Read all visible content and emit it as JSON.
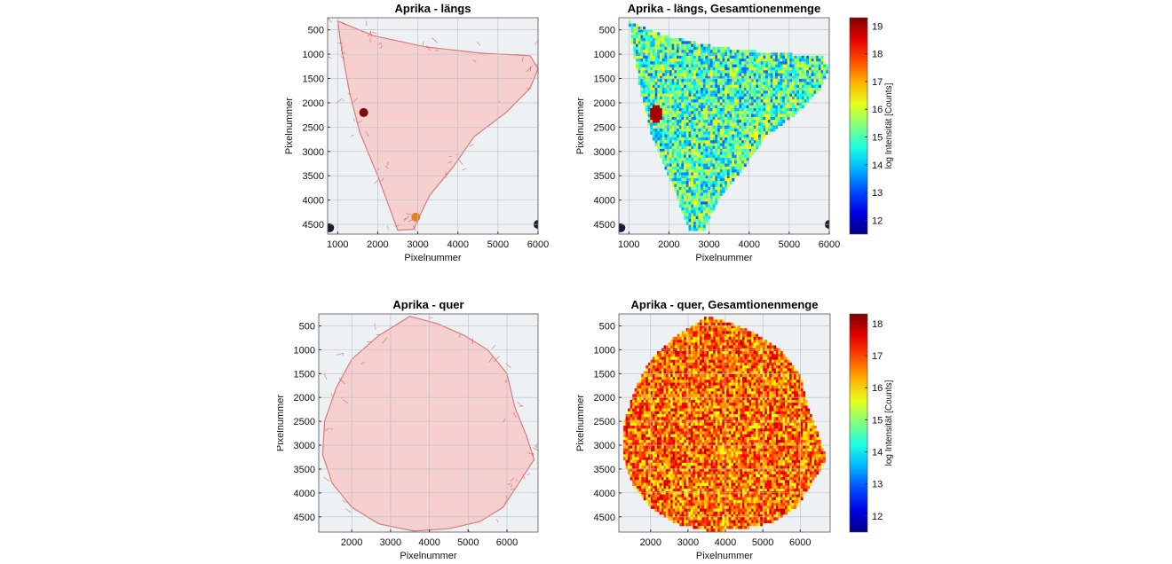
{
  "chart_data": [
    {
      "type": "heatmap",
      "title": "Aprika - längs",
      "xlabel": "Pixelnummer",
      "ylabel": "Pixelnummer",
      "xlim": [
        750,
        6000
      ],
      "ylim": [
        250,
        4700
      ],
      "xticks": [
        1000,
        2000,
        3000,
        4000,
        5000,
        6000
      ],
      "yticks": [
        500,
        1000,
        1500,
        2000,
        2500,
        3000,
        3500,
        4000,
        4500
      ],
      "grid": true,
      "render": "photo",
      "colormap": "reds",
      "outline": [
        [
          1000,
          320
        ],
        [
          1900,
          620
        ],
        [
          3200,
          850
        ],
        [
          4600,
          980
        ],
        [
          5800,
          1030
        ],
        [
          6000,
          1300
        ],
        [
          5800,
          1700
        ],
        [
          5200,
          2200
        ],
        [
          4400,
          2700
        ],
        [
          3900,
          3300
        ],
        [
          3300,
          3900
        ],
        [
          3000,
          4400
        ],
        [
          2900,
          4600
        ],
        [
          2500,
          4620
        ],
        [
          2000,
          3500
        ],
        [
          1550,
          2600
        ],
        [
          1300,
          1800
        ],
        [
          1100,
          900
        ]
      ],
      "spots": [
        {
          "x": 1650,
          "y": 2200,
          "color": "#7a0c0c"
        },
        {
          "x": 2950,
          "y": 4350,
          "color": "#e08020"
        },
        {
          "x": 800,
          "y": 4570,
          "color": "#1a1a2e"
        },
        {
          "x": 6000,
          "y": 4500,
          "color": "#1a1a2e"
        }
      ]
    },
    {
      "type": "heatmap",
      "title": "Aprika - längs, Gesamtionenmenge",
      "xlabel": "Pixelnummer",
      "ylabel": "Pixelnummer",
      "xlim": [
        750,
        6000
      ],
      "ylim": [
        250,
        4700
      ],
      "xticks": [
        1000,
        2000,
        3000,
        4000,
        5000,
        6000
      ],
      "yticks": [
        500,
        1000,
        1500,
        2000,
        2500,
        3000,
        3500,
        4000,
        4500
      ],
      "grid": true,
      "render": "intensity",
      "colormap": "jet",
      "colorbar": {
        "label": "log Intensität [Counts]",
        "range": [
          11.5,
          19.3
        ],
        "ticks": [
          12,
          13,
          14,
          15,
          16,
          17,
          18,
          19
        ]
      },
      "outline": [
        [
          1000,
          320
        ],
        [
          1900,
          620
        ],
        [
          3200,
          850
        ],
        [
          4600,
          980
        ],
        [
          5800,
          1030
        ],
        [
          6000,
          1300
        ],
        [
          5800,
          1700
        ],
        [
          5200,
          2200
        ],
        [
          4400,
          2700
        ],
        [
          3900,
          3300
        ],
        [
          3300,
          3900
        ],
        [
          3000,
          4400
        ],
        [
          2900,
          4600
        ],
        [
          2500,
          4620
        ],
        [
          2000,
          3500
        ],
        [
          1550,
          2600
        ],
        [
          1300,
          1800
        ],
        [
          1100,
          900
        ]
      ],
      "value_range": [
        13.2,
        16.6
      ],
      "hotspot": {
        "x": 1650,
        "y": 2200,
        "value": 19
      },
      "spots": [
        {
          "x": 800,
          "y": 4570,
          "color": "#1a1a2e"
        },
        {
          "x": 6000,
          "y": 4500,
          "color": "#1a1a2e"
        }
      ]
    },
    {
      "type": "heatmap",
      "title": "Aprika - quer",
      "xlabel": "Pixelnummer",
      "ylabel": "Pixelnummer",
      "xlim": [
        1150,
        6800
      ],
      "ylim": [
        250,
        4820
      ],
      "xticks": [
        2000,
        3000,
        4000,
        5000,
        6000
      ],
      "yticks": [
        500,
        1000,
        1500,
        2000,
        2500,
        3000,
        3500,
        4000,
        4500
      ],
      "grid": true,
      "render": "photo",
      "colormap": "reds",
      "outline": [
        [
          3500,
          300
        ],
        [
          4200,
          450
        ],
        [
          4900,
          700
        ],
        [
          5500,
          1000
        ],
        [
          6000,
          1500
        ],
        [
          6200,
          2200
        ],
        [
          6500,
          2800
        ],
        [
          6700,
          3300
        ],
        [
          6300,
          3800
        ],
        [
          5900,
          4300
        ],
        [
          5300,
          4600
        ],
        [
          4500,
          4750
        ],
        [
          3600,
          4800
        ],
        [
          2700,
          4650
        ],
        [
          2000,
          4300
        ],
        [
          1500,
          3800
        ],
        [
          1250,
          3200
        ],
        [
          1300,
          2500
        ],
        [
          1600,
          1800
        ],
        [
          2000,
          1200
        ],
        [
          2700,
          700
        ]
      ]
    },
    {
      "type": "heatmap",
      "title": "Aprika - quer, Gesamtionenmenge",
      "xlabel": "Pixelnummer",
      "ylabel": "Pixelnummer",
      "xlim": [
        1150,
        6800
      ],
      "ylim": [
        250,
        4820
      ],
      "xticks": [
        2000,
        3000,
        4000,
        5000,
        6000
      ],
      "yticks": [
        500,
        1000,
        1500,
        2000,
        2500,
        3000,
        3500,
        4000,
        4500
      ],
      "grid": true,
      "render": "intensity",
      "colormap": "jet",
      "colorbar": {
        "label": "log Intensität [Counts]",
        "range": [
          11.5,
          18.3
        ],
        "ticks": [
          12,
          13,
          14,
          15,
          16,
          17,
          18
        ]
      },
      "outline": [
        [
          3500,
          300
        ],
        [
          4200,
          450
        ],
        [
          4900,
          700
        ],
        [
          5500,
          1000
        ],
        [
          6000,
          1500
        ],
        [
          6200,
          2200
        ],
        [
          6500,
          2800
        ],
        [
          6700,
          3300
        ],
        [
          6300,
          3800
        ],
        [
          5900,
          4300
        ],
        [
          5300,
          4600
        ],
        [
          4500,
          4750
        ],
        [
          3600,
          4800
        ],
        [
          2700,
          4650
        ],
        [
          2000,
          4300
        ],
        [
          1500,
          3800
        ],
        [
          1250,
          3200
        ],
        [
          1300,
          2500
        ],
        [
          1600,
          1800
        ],
        [
          2000,
          1200
        ],
        [
          2700,
          700
        ]
      ],
      "value_range": [
        15.6,
        17.9
      ]
    }
  ]
}
